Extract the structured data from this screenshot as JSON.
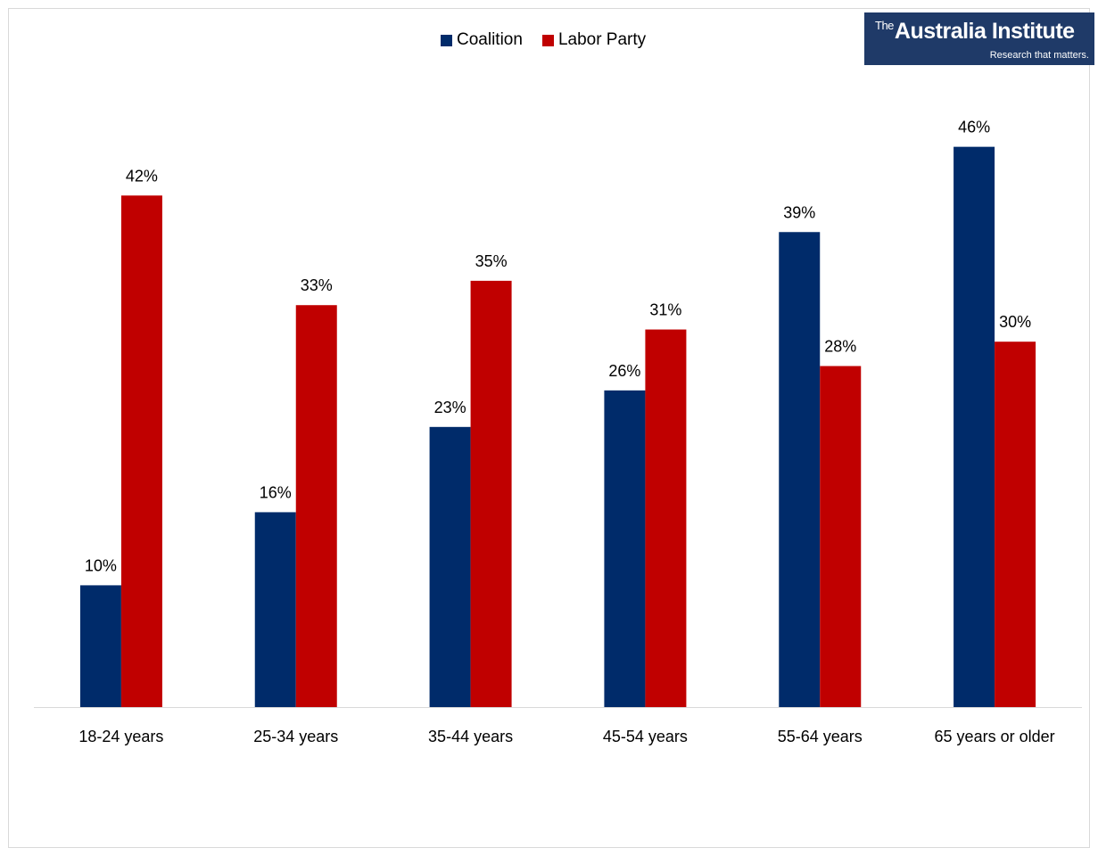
{
  "logo": {
    "prefix": "The",
    "name": "Australia Institute",
    "tagline": "Research that matters."
  },
  "colors": {
    "coalition": "#002b6a",
    "labor": "#c00000",
    "axis": "#d9d9d9",
    "logo_bg": "#1f3a68"
  },
  "chart_data": {
    "type": "bar",
    "title": "",
    "xlabel": "",
    "ylabel": "",
    "ylim": [
      0,
      52
    ],
    "grid": false,
    "legend_position": "top",
    "value_suffix": "%",
    "categories": [
      "18-24 years",
      "25-34 years",
      "35-44 years",
      "45-54 years",
      "55-64 years",
      "65 years or older"
    ],
    "series": [
      {
        "name": "Coalition",
        "values": [
          10,
          16,
          23,
          26,
          39,
          46
        ]
      },
      {
        "name": "Labor Party",
        "values": [
          42,
          33,
          35,
          31,
          28,
          30
        ]
      }
    ]
  }
}
